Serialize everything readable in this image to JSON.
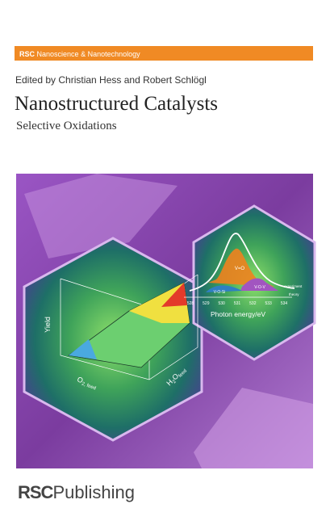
{
  "header": {
    "series_label": {
      "imprint": "RSC",
      "series": "Nanoscience & Nanotechnology"
    },
    "editors": "Edited by Christian Hess and Robert Schlögl",
    "title": "Nanostructured Catalysts",
    "subtitle": "Selective Oxidations"
  },
  "cover_image": {
    "surface_plot": {
      "y_label": "Yield",
      "x_label": {
        "main": "O",
        "sub": "2, feed"
      },
      "z_label": {
        "h": "H",
        "two": "2",
        "o": "O",
        "sub": "feed"
      }
    },
    "spectrum": {
      "x_label": "Photon energy/eV",
      "ticks": [
        528,
        529,
        530,
        531,
        532,
        533,
        534
      ],
      "peaks": [
        "V=O",
        "V-O-V",
        "V-O-Si"
      ],
      "legend": [
        "experiment",
        "theory"
      ]
    }
  },
  "footer": {
    "publisher": {
      "imprint": "RSC",
      "name": "Publishing"
    }
  }
}
